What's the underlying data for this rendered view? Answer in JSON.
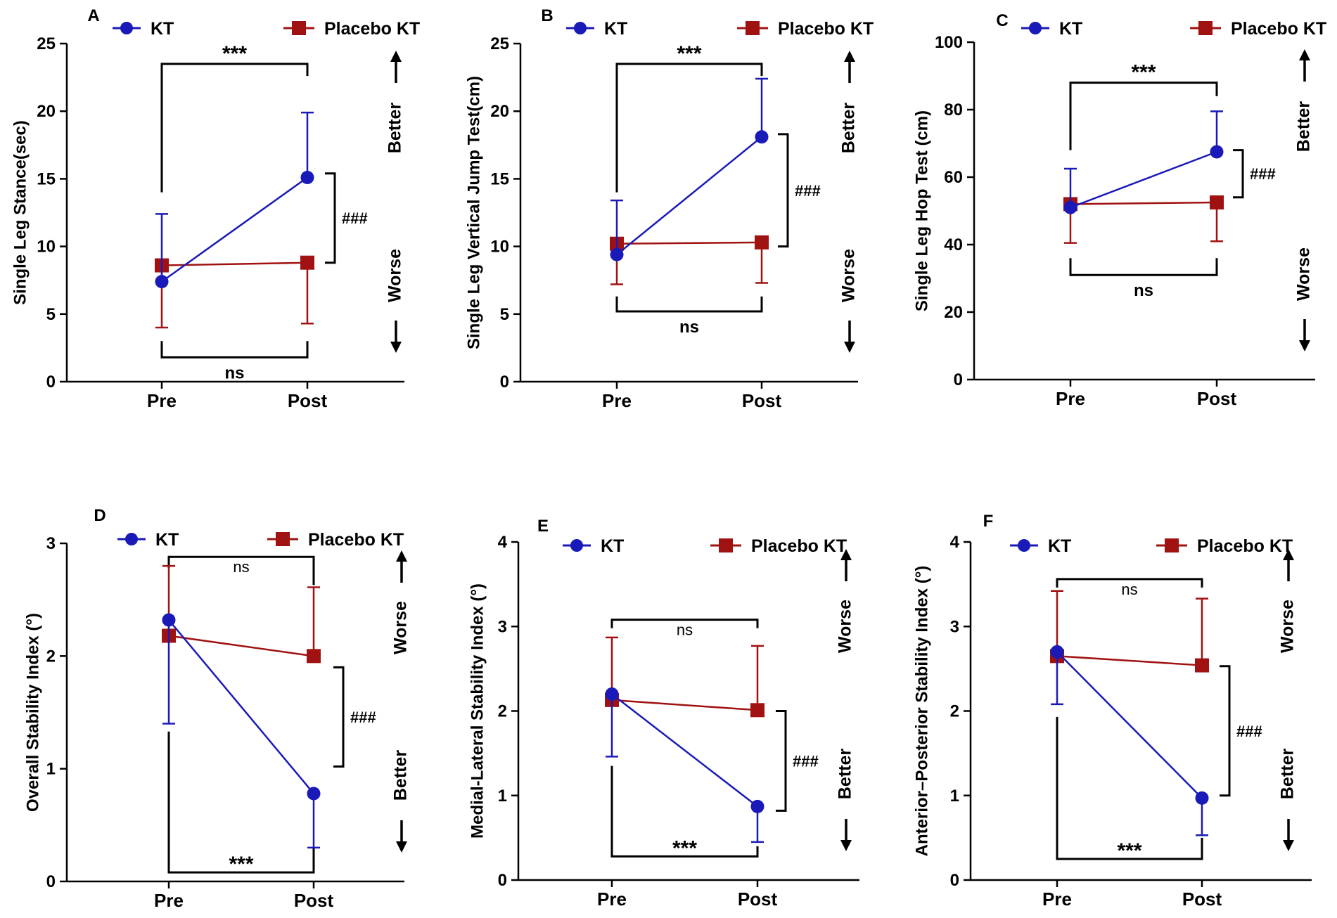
{
  "colors": {
    "kt": "#1a1ab8",
    "placebo": "#a01212",
    "axis": "#000000"
  },
  "legend_kt": "KT",
  "legend_placebo": "Placebo KT",
  "chart_data": [
    {
      "panel": "A",
      "type": "line",
      "ylabel": "Single Leg Stance(sec)",
      "categories": [
        "Pre",
        "Post"
      ],
      "ylim": [
        0,
        25
      ],
      "yticks": [
        0,
        5,
        10,
        15,
        20,
        25
      ],
      "series": [
        {
          "name": "KT",
          "values": [
            7.4,
            15.1
          ],
          "err_up": [
            12.4,
            19.9
          ],
          "err_down": [
            null,
            null
          ]
        },
        {
          "name": "Placebo KT",
          "values": [
            8.6,
            8.8
          ],
          "err_up": [
            null,
            null
          ],
          "err_down": [
            4.0,
            4.3
          ]
        }
      ],
      "arrows": {
        "up": "Better",
        "down": "Worse"
      },
      "brackets": [
        {
          "type": "top",
          "label": "***",
          "y": 23.5,
          "left_end": 14.0,
          "right_end": 22.6
        },
        {
          "type": "bottom",
          "label": "ns",
          "y": 1.8,
          "left_end": 3.0,
          "right_end": 3.0
        },
        {
          "type": "side",
          "label": "###",
          "y1": 15.4,
          "y2": 8.8
        }
      ]
    },
    {
      "panel": "B",
      "type": "line",
      "ylabel": "Single Leg Vertical Jump Test(cm)",
      "categories": [
        "Pre",
        "Post"
      ],
      "ylim": [
        0,
        25
      ],
      "yticks": [
        0,
        5,
        10,
        15,
        20,
        25
      ],
      "series": [
        {
          "name": "KT",
          "values": [
            9.4,
            18.1
          ],
          "err_up": [
            13.4,
            22.4
          ],
          "err_down": [
            null,
            null
          ]
        },
        {
          "name": "Placebo KT",
          "values": [
            10.2,
            10.3
          ],
          "err_up": [
            null,
            null
          ],
          "err_down": [
            7.2,
            7.3
          ]
        }
      ],
      "arrows": {
        "up": "Better",
        "down": "Worse"
      },
      "brackets": [
        {
          "type": "top",
          "label": "***",
          "y": 23.5,
          "left_end": 14.0,
          "right_end": 22.6
        },
        {
          "type": "bottom",
          "label": "ns",
          "y": 5.2,
          "left_end": 6.3,
          "right_end": 6.3
        },
        {
          "type": "side",
          "label": "###",
          "y1": 18.3,
          "y2": 10.0
        }
      ]
    },
    {
      "panel": "C",
      "type": "line",
      "ylabel": "Single Leg Hop Test (cm)",
      "categories": [
        "Pre",
        "Post"
      ],
      "ylim": [
        0,
        100
      ],
      "yticks": [
        0,
        20,
        40,
        60,
        80,
        100
      ],
      "series": [
        {
          "name": "KT",
          "values": [
            51.0,
            67.5
          ],
          "err_up": [
            62.5,
            79.5
          ],
          "err_down": [
            null,
            null
          ]
        },
        {
          "name": "Placebo KT",
          "values": [
            52.0,
            52.5
          ],
          "err_up": [
            null,
            null
          ],
          "err_down": [
            40.5,
            41.0
          ]
        }
      ],
      "arrows": {
        "up": "Better",
        "down": "Worse"
      },
      "brackets": [
        {
          "type": "top",
          "label": "***",
          "y": 88.0,
          "left_end": 68.0,
          "right_end": 84.0
        },
        {
          "type": "bottom",
          "label": "ns",
          "y": 31.0,
          "left_end": 36.0,
          "right_end": 36.0
        },
        {
          "type": "side",
          "label": "###",
          "y1": 68.0,
          "y2": 54.0
        }
      ]
    },
    {
      "panel": "D",
      "type": "line",
      "ylabel": "Overall Stability Index (°)",
      "categories": [
        "Pre",
        "Post"
      ],
      "ylim": [
        0,
        3
      ],
      "yticks": [
        0,
        1,
        2,
        3
      ],
      "series": [
        {
          "name": "KT",
          "values": [
            2.32,
            0.78
          ],
          "err_up": [
            null,
            null
          ],
          "err_down": [
            1.4,
            0.3
          ]
        },
        {
          "name": "Placebo KT",
          "values": [
            2.18,
            2.0
          ],
          "err_up": [
            2.8,
            2.61
          ],
          "err_down": [
            null,
            null
          ]
        }
      ],
      "arrows": {
        "up": "Worse",
        "down": "Better"
      },
      "brackets": [
        {
          "type": "top",
          "label": "ns",
          "y": 2.88,
          "left_end": 2.78,
          "right_end": 2.63
        },
        {
          "type": "bottom",
          "label": "***",
          "y": 0.08,
          "left_end": 1.33,
          "right_end": 0.3
        },
        {
          "type": "side",
          "label": "###",
          "y1": 1.9,
          "y2": 1.02
        }
      ]
    },
    {
      "panel": "E",
      "type": "line",
      "ylabel": "Medial-Lateral Stability Index (°)",
      "categories": [
        "Pre",
        "Post"
      ],
      "ylim": [
        0,
        4
      ],
      "yticks": [
        0,
        1,
        2,
        3,
        4
      ],
      "series": [
        {
          "name": "KT",
          "values": [
            2.2,
            0.87
          ],
          "err_up": [
            null,
            null
          ],
          "err_down": [
            1.46,
            0.45
          ]
        },
        {
          "name": "Placebo KT",
          "values": [
            2.13,
            2.01
          ],
          "err_up": [
            2.87,
            2.77
          ],
          "err_down": [
            null,
            null
          ]
        }
      ],
      "arrows": {
        "up": "Worse",
        "down": "Better"
      },
      "brackets": [
        {
          "type": "top",
          "label": "ns",
          "y": 3.08,
          "left_end": 2.98,
          "right_end": 2.98
        },
        {
          "type": "bottom",
          "label": "***",
          "y": 0.28,
          "left_end": 1.35,
          "right_end": 0.4
        },
        {
          "type": "side",
          "label": "###",
          "y1": 2.0,
          "y2": 0.82
        }
      ]
    },
    {
      "panel": "F",
      "type": "line",
      "ylabel": "Anterior–Posterior Stability Index (°)",
      "categories": [
        "Pre",
        "Post"
      ],
      "ylim": [
        0,
        4
      ],
      "yticks": [
        0,
        1,
        2,
        3,
        4
      ],
      "series": [
        {
          "name": "KT",
          "values": [
            2.7,
            0.97
          ],
          "err_up": [
            null,
            null
          ],
          "err_down": [
            2.08,
            0.53
          ]
        },
        {
          "name": "Placebo KT",
          "values": [
            2.65,
            2.54
          ],
          "err_up": [
            3.42,
            3.33
          ],
          "err_down": [
            null,
            null
          ]
        }
      ],
      "arrows": {
        "up": "Worse",
        "down": "Better"
      },
      "brackets": [
        {
          "type": "top",
          "label": "ns",
          "y": 3.56,
          "left_end": 3.46,
          "right_end": 3.46
        },
        {
          "type": "bottom",
          "label": "***",
          "y": 0.25,
          "left_end": 1.93,
          "right_end": 0.5
        },
        {
          "type": "side",
          "label": "###",
          "y1": 2.53,
          "y2": 1.0
        }
      ]
    }
  ]
}
